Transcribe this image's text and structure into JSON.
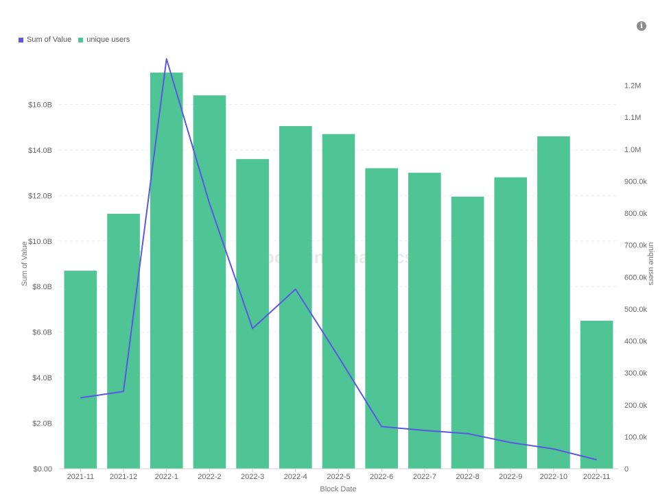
{
  "legend": [
    {
      "label": "Sum of Value",
      "color": "#5a57e6"
    },
    {
      "label": "unique users",
      "color": "#4fc494"
    }
  ],
  "info_icon": "info-icon",
  "watermark": "Footprint Analytics",
  "chart_data": {
    "type": "bar+line",
    "categories": [
      "2021-11",
      "2021-12",
      "2022-1",
      "2022-2",
      "2022-3",
      "2022-4",
      "2022-5",
      "2022-6",
      "2022-7",
      "2022-8",
      "2022-9",
      "2022-10",
      "2022-11"
    ],
    "series": [
      {
        "name": "unique users",
        "type": "bar",
        "axis": "left",
        "color": "#4fc494",
        "values": [
          8.7,
          11.2,
          17.4,
          16.4,
          13.6,
          15.05,
          14.7,
          13.2,
          13.0,
          11.95,
          12.8,
          14.6,
          6.5
        ]
      },
      {
        "name": "Sum of Value",
        "type": "line",
        "axis": "right",
        "color": "#5a57e6",
        "values": [
          222000,
          242000,
          1283000,
          830000,
          439000,
          562000,
          350000,
          132000,
          120000,
          110000,
          82000,
          62000,
          28000
        ]
      }
    ],
    "xlabel": "Block Date",
    "ylabel_left": "Sum of Value",
    "ylabel_right": "unique users",
    "left_axis": {
      "min": 0,
      "max": 18,
      "ticks": [
        {
          "v": 0,
          "label": "$0.00"
        },
        {
          "v": 2,
          "label": "$2.0B"
        },
        {
          "v": 4,
          "label": "$4.0B"
        },
        {
          "v": 6,
          "label": "$6.0B"
        },
        {
          "v": 8,
          "label": "$8.0B"
        },
        {
          "v": 10,
          "label": "$10.0B"
        },
        {
          "v": 12,
          "label": "$12.0B"
        },
        {
          "v": 14,
          "label": "$14.0B"
        },
        {
          "v": 16,
          "label": "$16.0B"
        }
      ]
    },
    "right_axis": {
      "min": 0,
      "max": 1300000,
      "ticks": [
        {
          "v": 0,
          "label": "0"
        },
        {
          "v": 100000,
          "label": "100.0k"
        },
        {
          "v": 200000,
          "label": "200.0k"
        },
        {
          "v": 300000,
          "label": "300.0k"
        },
        {
          "v": 400000,
          "label": "400.0k"
        },
        {
          "v": 500000,
          "label": "500.0k"
        },
        {
          "v": 600000,
          "label": "600.0k"
        },
        {
          "v": 700000,
          "label": "700.0k"
        },
        {
          "v": 800000,
          "label": "800.0k"
        },
        {
          "v": 900000,
          "label": "900.0k"
        },
        {
          "v": 1000000,
          "label": "1.0M"
        },
        {
          "v": 1100000,
          "label": "1.1M"
        },
        {
          "v": 1200000,
          "label": "1.2M"
        }
      ]
    },
    "grid": true,
    "legend_position": "top-left"
  }
}
